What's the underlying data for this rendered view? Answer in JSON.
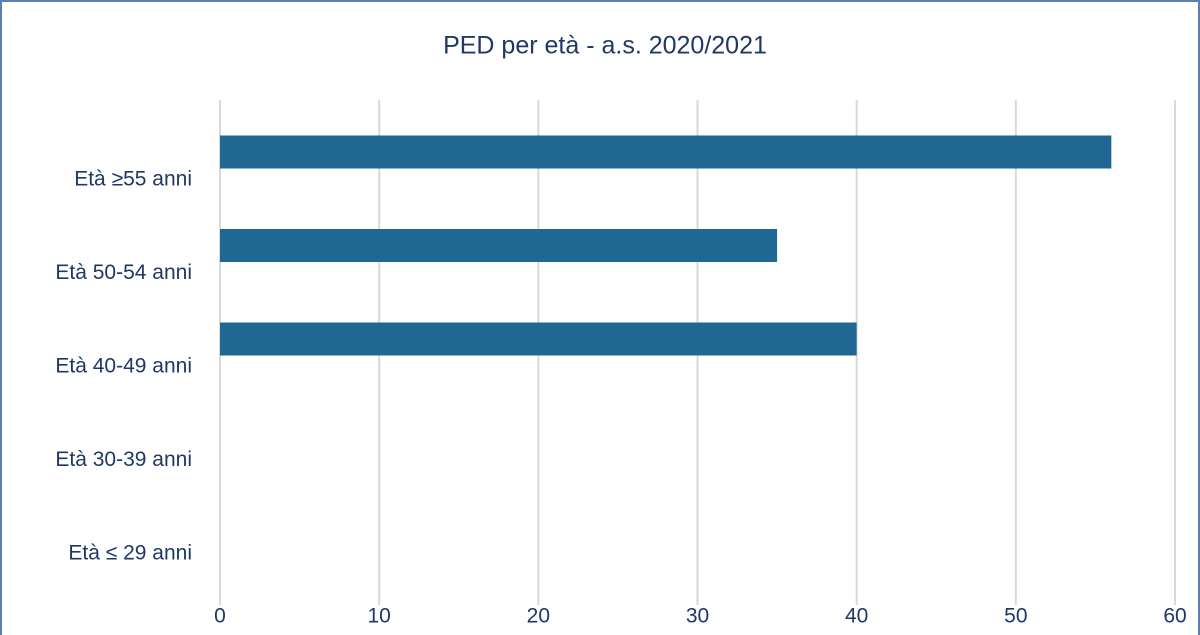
{
  "chart_data": {
    "type": "bar",
    "orientation": "horizontal",
    "title": "PED per età - a.s. 2020/2021",
    "categories": [
      "Età ≥55 anni",
      "Età 50-54 anni",
      "Età 40-49 anni",
      "Età 30-39 anni",
      "Età ≤ 29 anni"
    ],
    "values": [
      56,
      35,
      40,
      0,
      0
    ],
    "color": "#1f6894",
    "xlim": [
      0,
      60
    ],
    "xticks": [
      0,
      10,
      20,
      30,
      40,
      50,
      60
    ],
    "grid": true
  }
}
